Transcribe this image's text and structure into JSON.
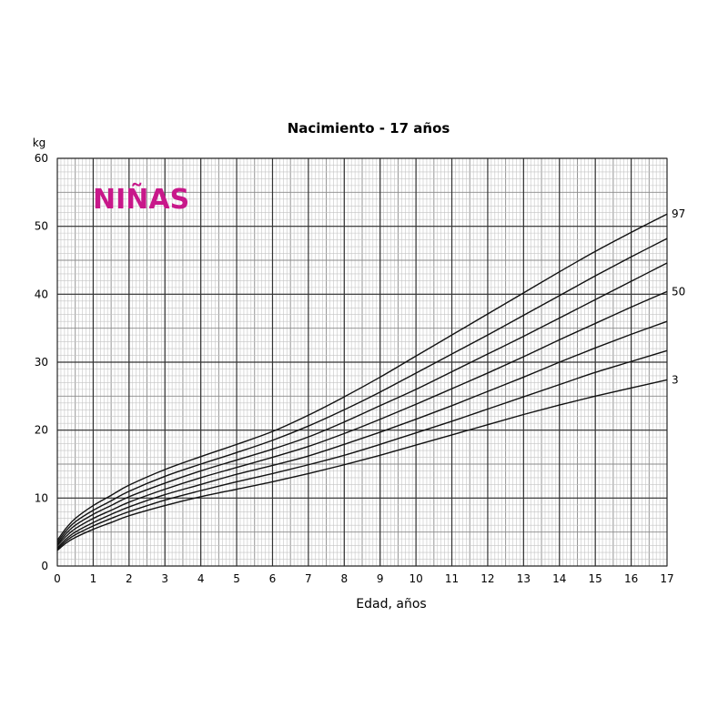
{
  "chart_data": {
    "type": "line",
    "title": "Nacimiento - 17 años",
    "badge": "NIÑAS",
    "badge_color": "#c8188a",
    "xlabel": "Edad, años",
    "ylabel": "kg",
    "xlim": [
      0,
      17
    ],
    "ylim": [
      0,
      60
    ],
    "x_ticks": [
      "0",
      "1",
      "2",
      "3",
      "4",
      "5",
      "6",
      "7",
      "8",
      "9",
      "10",
      "11",
      "12",
      "13",
      "14",
      "15",
      "16",
      "17"
    ],
    "y_ticks": [
      "0",
      "10",
      "20",
      "30",
      "40",
      "50",
      "60"
    ],
    "grid": true,
    "x": [
      0,
      0.25,
      0.5,
      1,
      1.5,
      2,
      3,
      4,
      5,
      6,
      7,
      8,
      9,
      10,
      11,
      12,
      13,
      14,
      15,
      16,
      17
    ],
    "series": [
      {
        "name": "97",
        "values": [
          3.8,
          5.6,
          7.0,
          8.9,
          10.4,
          11.9,
          14.2,
          16.1,
          17.9,
          19.8,
          22.2,
          24.9,
          27.8,
          30.9,
          34.0,
          37.1,
          40.2,
          43.3,
          46.3,
          49.1,
          51.8
        ]
      },
      {
        "name": "",
        "values": [
          3.5,
          5.2,
          6.5,
          8.2,
          9.6,
          11.0,
          13.2,
          15.0,
          16.7,
          18.5,
          20.6,
          23.0,
          25.6,
          28.4,
          31.2,
          34.0,
          36.9,
          39.8,
          42.7,
          45.5,
          48.2
        ]
      },
      {
        "name": "",
        "values": [
          3.2,
          4.8,
          6.0,
          7.6,
          8.9,
          10.2,
          12.2,
          14.0,
          15.6,
          17.2,
          19.0,
          21.2,
          23.6,
          26.0,
          28.6,
          31.2,
          33.8,
          36.5,
          39.2,
          41.9,
          44.6
        ]
      },
      {
        "name": "50",
        "values": [
          3.0,
          4.4,
          5.5,
          7.0,
          8.2,
          9.4,
          11.3,
          13.0,
          14.5,
          16.0,
          17.6,
          19.5,
          21.6,
          23.8,
          26.1,
          28.4,
          30.8,
          33.3,
          35.7,
          38.1,
          40.4
        ]
      },
      {
        "name": "",
        "values": [
          2.7,
          4.0,
          5.0,
          6.4,
          7.6,
          8.7,
          10.5,
          12.0,
          13.5,
          14.8,
          16.2,
          17.9,
          19.7,
          21.6,
          23.6,
          25.7,
          27.8,
          30.0,
          32.1,
          34.1,
          36.0
        ]
      },
      {
        "name": "",
        "values": [
          2.5,
          3.7,
          4.6,
          5.9,
          7.0,
          8.0,
          9.7,
          11.1,
          12.4,
          13.6,
          14.9,
          16.3,
          17.9,
          19.6,
          21.3,
          23.1,
          24.9,
          26.7,
          28.5,
          30.1,
          31.7
        ]
      },
      {
        "name": "3",
        "values": [
          2.3,
          3.4,
          4.2,
          5.4,
          6.4,
          7.4,
          8.9,
          10.2,
          11.3,
          12.4,
          13.6,
          14.9,
          16.3,
          17.8,
          19.3,
          20.8,
          22.3,
          23.7,
          25.0,
          26.2,
          27.4
        ]
      }
    ]
  }
}
